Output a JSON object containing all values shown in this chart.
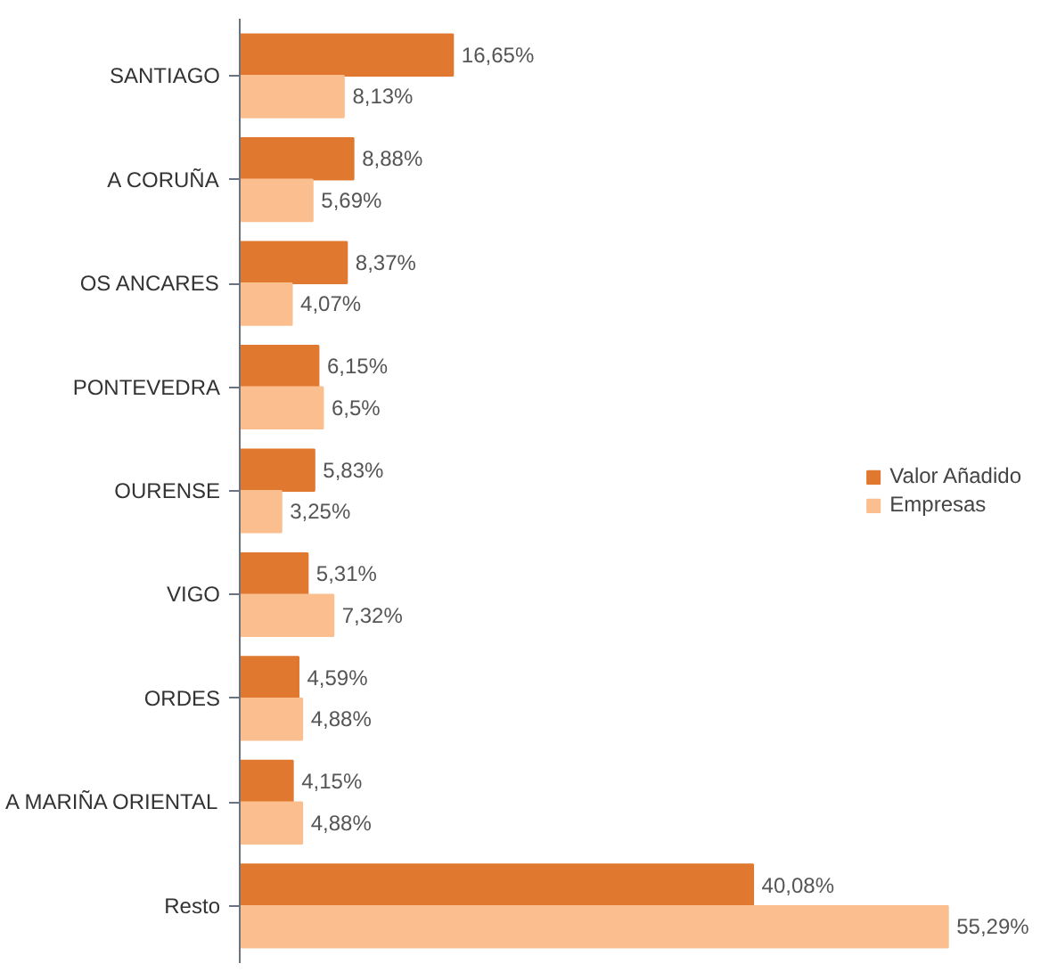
{
  "chart_data": {
    "type": "bar",
    "orientation": "horizontal",
    "categories": [
      "SANTIAGO",
      "A CORUÑA",
      "OS ANCARES",
      "PONTEVEDRA",
      "OURENSE",
      "VIGO",
      "ORDES",
      "A MARIÑA ORIENTAL",
      "Resto"
    ],
    "series": [
      {
        "name": "Valor Añadido",
        "color": "#e07830",
        "values": [
          16.65,
          8.88,
          8.37,
          6.15,
          5.83,
          5.31,
          4.59,
          4.15,
          40.08
        ],
        "value_labels": [
          "16,65%",
          "8,88%",
          "8,37%",
          "6,15%",
          "5,83%",
          "5,31%",
          "4,59%",
          "4,15%",
          "40,08%"
        ]
      },
      {
        "name": "Empresas",
        "color": "#fbbf8f",
        "values": [
          8.13,
          5.69,
          4.07,
          6.5,
          3.25,
          7.32,
          4.88,
          4.88,
          55.29
        ],
        "value_labels": [
          "8,13%",
          "5,69%",
          "4,07%",
          "6,5%",
          "3,25%",
          "7,32%",
          "4,88%",
          "4,88%",
          "55,29%"
        ]
      }
    ],
    "tick_labels": "y",
    "legend": "right",
    "grid": false
  }
}
